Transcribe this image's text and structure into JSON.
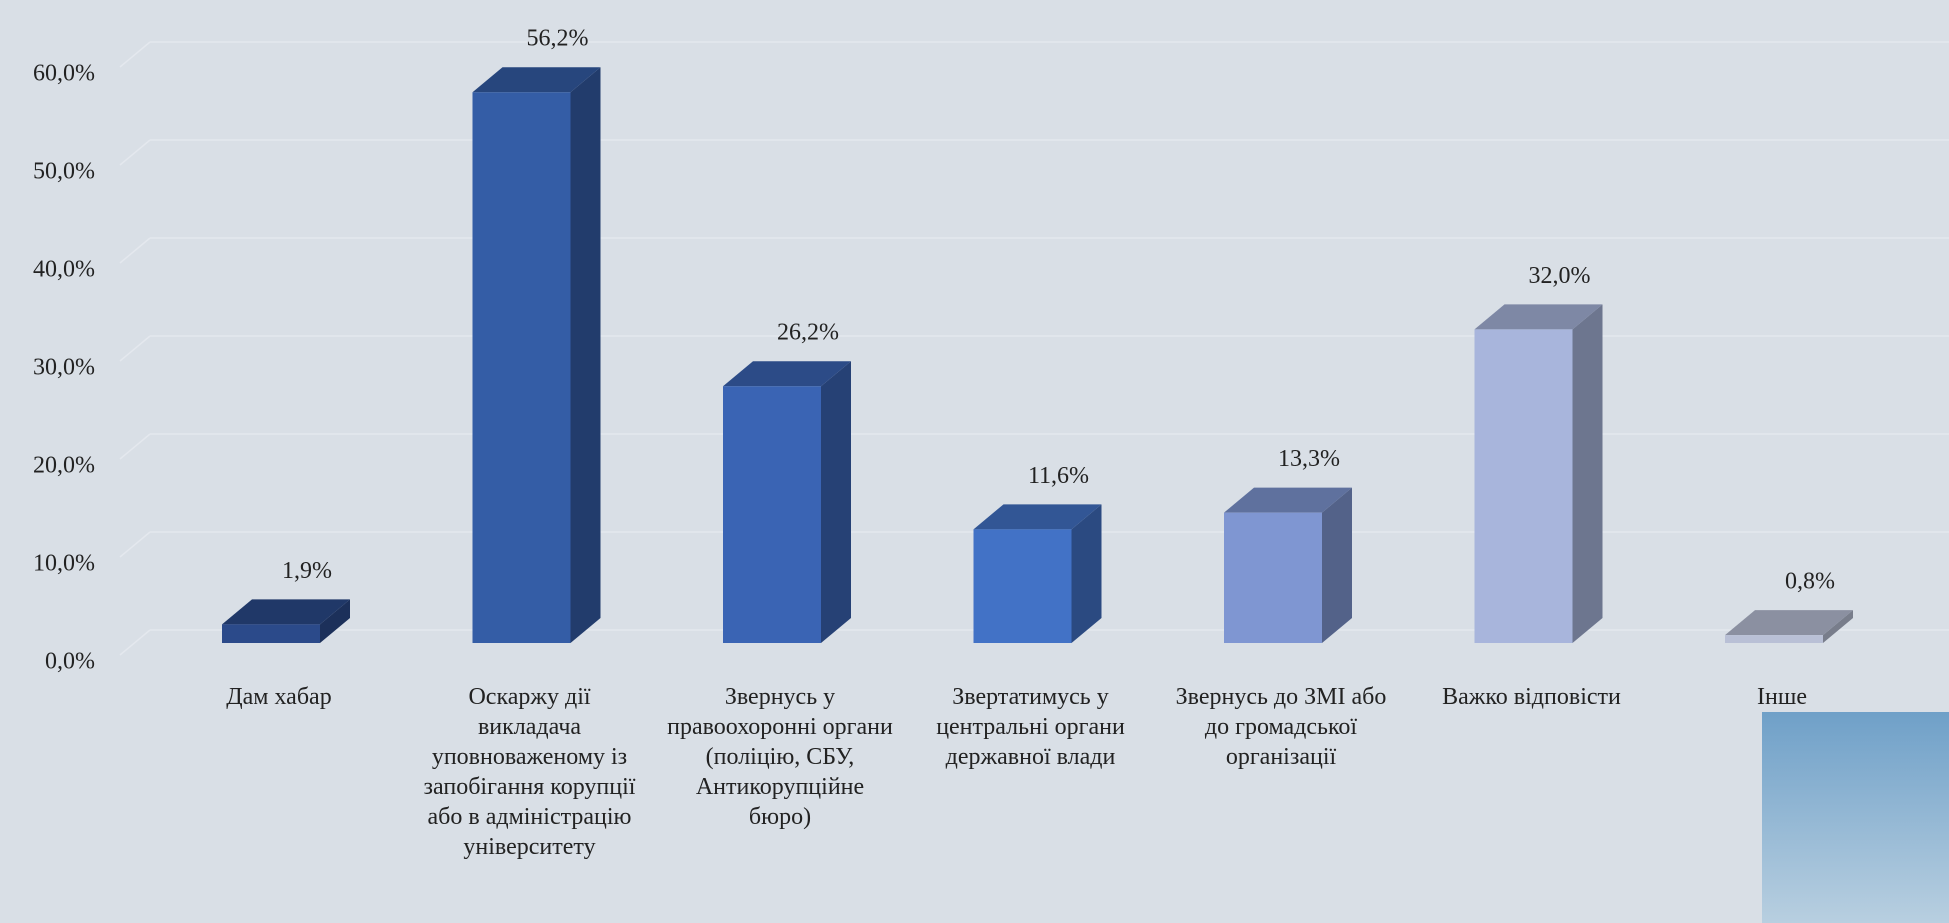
{
  "chart_data": {
    "type": "bar3d",
    "categories": [
      "Дам хабар",
      "Оскаржу дії викладача уповноваженому із запобігання корупції або в адміністрацію університету",
      "Звернусь у правоохоронні органи (поліцію, СБУ, Антикорупційне бюро)",
      "Звертатимусь у центральні органи державної влади",
      "Звернусь до ЗМІ або до громадської організації",
      "Важко відповісти",
      "Інше"
    ],
    "values": [
      1.9,
      56.2,
      26.2,
      11.6,
      13.3,
      32.0,
      0.8
    ],
    "value_labels": [
      "1,9%",
      "56,2%",
      "26,2%",
      "11,6%",
      "13,3%",
      "32,0%",
      "0,8%"
    ],
    "colors": [
      "#2b4a8a",
      "#345da6",
      "#3a64b4",
      "#4272c6",
      "#7f96d2",
      "#a8b5dc",
      "#b9c0d6"
    ],
    "ylim": [
      0,
      60
    ],
    "yticks": [
      {
        "value": 0,
        "label": "0,0%"
      },
      {
        "value": 10,
        "label": "10,0%"
      },
      {
        "value": 20,
        "label": "20,0%"
      },
      {
        "value": 30,
        "label": "30,0%"
      },
      {
        "value": 40,
        "label": "40,0%"
      },
      {
        "value": 50,
        "label": "50,0%"
      },
      {
        "value": 60,
        "label": "60,0%"
      }
    ],
    "grid": true
  }
}
